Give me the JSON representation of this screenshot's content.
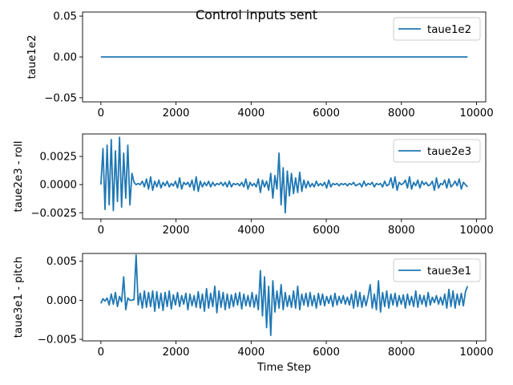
{
  "chart_data": [
    {
      "type": "line",
      "title": "Control inputs sent",
      "xlabel": "",
      "ylabel": "taue1e2",
      "xlim": [
        -488,
        10245
      ],
      "ylim": [
        -0.055,
        0.055
      ],
      "xticks": [
        "0",
        "2000",
        "4000",
        "6000",
        "8000",
        "10000"
      ],
      "yticks": [
        "0.05",
        "0.00",
        "−0.05"
      ],
      "ytick_values": [
        0.05,
        0.0,
        -0.05
      ],
      "legend_position": "upper-right",
      "series": [
        {
          "name": "taue1e2",
          "color": "#1f77b4",
          "x_range": [
            0,
            9760
          ],
          "values": [
            0.0,
            0.0
          ]
        }
      ]
    },
    {
      "type": "line",
      "xlabel": "",
      "ylabel": "taue2e3 - roll",
      "xlim": [
        -488,
        10245
      ],
      "ylim": [
        -0.00305,
        0.0045
      ],
      "xticks": [
        "0",
        "2000",
        "4000",
        "6000",
        "8000",
        "10000"
      ],
      "yticks": [
        "0.0025",
        "0.0000",
        "−0.0025"
      ],
      "ytick_values": [
        0.0025,
        0.0,
        -0.0025
      ],
      "legend_position": "upper-right",
      "series": [
        {
          "name": "taue2e3",
          "color": "#1f77b4",
          "x_range": [
            0,
            9760
          ],
          "values": [
            0.0,
            0.0032,
            -0.0022,
            0.0035,
            -0.0018,
            0.004,
            -0.0023,
            0.003,
            -0.0015,
            0.0042,
            -0.002,
            0.0028,
            -0.0012,
            0.0035,
            -0.0018,
            0.001,
            0.0002,
            0.0,
            0.0001,
            0.0,
            0.0003,
            -0.0002,
            0.0005,
            -0.0004,
            0.0007,
            -0.0005,
            0.0003,
            -0.0002,
            0.0004,
            -0.0003,
            0.0002,
            -0.0001,
            0.0003,
            -0.0002,
            0.0001,
            -0.0001,
            0.0003,
            -0.0003,
            0.0006,
            -0.0004,
            0.0002,
            0.0,
            0.0002,
            -0.0002,
            0.0004,
            -0.0005,
            0.0007,
            -0.0006,
            0.0003,
            -0.0002,
            0.0002,
            -0.0001,
            0.0003,
            -0.0002,
            0.0002,
            -0.0001,
            0.0001,
            0.0,
            0.0002,
            -0.0001,
            0.0002,
            -0.0002,
            0.0003,
            -0.0002,
            0.0001,
            0.0,
            0.0001,
            -0.0001,
            0.0002,
            -0.0002,
            0.0005,
            -0.0004,
            0.0002,
            -0.0001,
            0.0001,
            -0.0002,
            0.0005,
            -0.0007,
            0.0004,
            -0.0002,
            0.0003,
            -0.0005,
            0.001,
            -0.0012,
            0.0008,
            -0.0004,
            0.0028,
            -0.0018,
            0.0015,
            -0.0025,
            0.0012,
            -0.001,
            0.001,
            -0.0008,
            0.0006,
            -0.0007,
            0.0011,
            -0.0006,
            0.0004,
            -0.0003,
            0.0003,
            -0.0002,
            0.0001,
            -0.0002,
            0.0003,
            -0.0001,
            0.0001,
            -0.0001,
            0.0002,
            -0.0003,
            0.0004,
            -0.0002,
            0.0001,
            0.0,
            0.0001,
            -0.0001,
            0.0001,
            0.0,
            0.0001,
            -0.0001,
            0.0001,
            0.0,
            0.0002,
            -0.0001,
            0.0,
            0.0001,
            -0.0002,
            0.0003,
            -0.0001,
            0.0001,
            0.0,
            0.0002,
            -0.0002,
            0.0001,
            0.0,
            0.0001,
            -0.0002,
            0.0003,
            -0.0001,
            0.0,
            0.0006,
            -0.0003,
            0.0007,
            -0.0005,
            0.0002,
            0.0,
            0.0001,
            0.0004,
            -0.0003,
            0.0007,
            -0.0004,
            0.0002,
            -0.0001,
            0.0004,
            -0.0003,
            0.0003,
            0.0,
            0.0002,
            -0.0001,
            0.0,
            0.0003,
            -0.0005,
            0.0006,
            -0.0003,
            0.0001,
            0.0,
            0.0004,
            -0.0003,
            0.0005,
            -0.0002,
            0.0,
            0.0003,
            -0.0001,
            0.0005,
            -0.0004,
            0.0002,
            0.0,
            -0.0002
          ]
        }
      ]
    },
    {
      "type": "line",
      "xlabel": "Time Step",
      "ylabel": "taue3e1 - pitch",
      "xlim": [
        -488,
        10245
      ],
      "ylim": [
        -0.0052,
        0.006
      ],
      "xticks": [
        "0",
        "2000",
        "4000",
        "6000",
        "8000",
        "10000"
      ],
      "yticks": [
        "0.005",
        "0.000",
        "−0.005"
      ],
      "ytick_values": [
        0.005,
        0.0,
        -0.005
      ],
      "legend_position": "upper-right",
      "series": [
        {
          "name": "taue3e1",
          "color": "#1f77b4",
          "x_range": [
            0,
            9760
          ],
          "values": [
            -0.0004,
            0.0002,
            -0.0001,
            0.0003,
            -0.0006,
            0.0008,
            -0.0005,
            0.001,
            -0.0008,
            0.0005,
            -0.0002,
            0.003,
            -0.0012,
            0.0003,
            0.0,
            0.0,
            0.0001,
            0.0058,
            -0.0006,
            0.0009,
            -0.001,
            0.0012,
            -0.0009,
            0.001,
            -0.0008,
            0.0012,
            -0.0014,
            0.0011,
            -0.001,
            0.0009,
            -0.0013,
            0.001,
            -0.0008,
            0.0012,
            -0.0011,
            0.0007,
            -0.0006,
            0.001,
            -0.0008,
            0.0006,
            -0.0005,
            0.0009,
            -0.0012,
            0.0008,
            -0.0007,
            0.0006,
            -0.0009,
            0.0011,
            -0.001,
            0.0008,
            -0.0014,
            0.0015,
            -0.001,
            0.0009,
            -0.0008,
            0.0018,
            -0.0016,
            0.0012,
            -0.0009,
            0.001,
            -0.0012,
            0.0008,
            -0.001,
            0.0007,
            -0.0008,
            0.0009,
            -0.0006,
            0.001,
            -0.0011,
            0.0008,
            -0.0007,
            0.0006,
            -0.0008,
            0.001,
            -0.0009,
            0.0007,
            -0.0012,
            0.0038,
            -0.002,
            0.003,
            -0.0035,
            0.0018,
            -0.0045,
            0.0025,
            -0.0015,
            0.0012,
            -0.001,
            0.002,
            -0.0012,
            0.001,
            -0.0008,
            0.0006,
            -0.0009,
            0.0012,
            -0.001,
            0.0018,
            -0.0012,
            0.0008,
            -0.0006,
            0.0009,
            -0.0008,
            0.001,
            -0.0007,
            0.0006,
            -0.001,
            0.0009,
            -0.0006,
            0.0008,
            -0.0007,
            0.0005,
            -0.0004,
            0.0006,
            -0.0008,
            0.0009,
            -0.0006,
            0.0005,
            -0.0004,
            0.0006,
            -0.0005,
            0.0004,
            -0.0006,
            0.0008,
            -0.001,
            0.0012,
            -0.0008,
            0.001,
            -0.0009,
            0.0006,
            -0.0007,
            0.0005,
            0.002,
            -0.001,
            0.0008,
            -0.0012,
            0.0025,
            -0.0015,
            0.001,
            -0.0008,
            0.0012,
            -0.001,
            0.0008,
            -0.0006,
            0.0009,
            -0.0008,
            0.0006,
            -0.0005,
            0.0007,
            -0.001,
            0.0008,
            -0.0006,
            0.0005,
            -0.0008,
            0.0012,
            -0.0009,
            0.0007,
            -0.0005,
            0.0006,
            -0.0008,
            0.001,
            -0.0006,
            0.0004,
            -0.0003,
            0.0006,
            -0.0005,
            0.0004,
            -0.0006,
            0.0008,
            -0.001,
            0.0014,
            -0.0008,
            0.0012,
            -0.001,
            0.0008,
            -0.0006,
            0.0009,
            -0.0007,
            0.0011,
            0.0018
          ]
        }
      ]
    }
  ]
}
